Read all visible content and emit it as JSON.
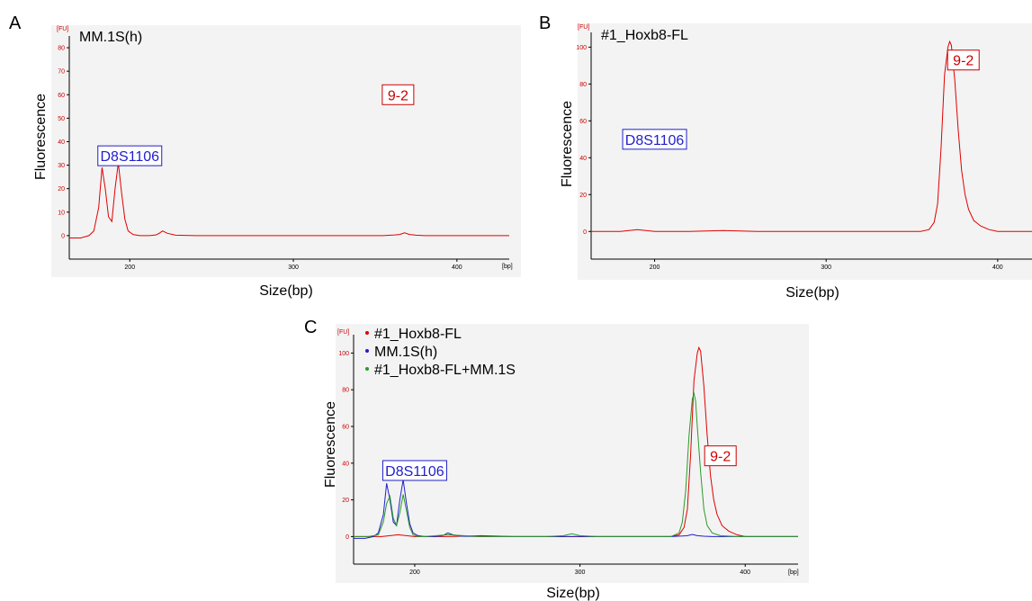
{
  "chart_data": [
    {
      "panel": "A",
      "type": "line",
      "title": "MM.1S(h)",
      "xlabel": "Size(bp)",
      "ylabel": "Fluorescence",
      "y_unit": "[FU]",
      "x_unit": "[bp]",
      "xlim": [
        163,
        432
      ],
      "ylim": [
        -10,
        85
      ],
      "xticks": [
        200,
        300,
        400
      ],
      "yticks": [
        0,
        10,
        20,
        30,
        40,
        50,
        60,
        70,
        80
      ],
      "grid": false,
      "annotations": [
        {
          "text": "D8S1106",
          "x": 200,
          "y": 34,
          "color": "#1f1fcc"
        },
        {
          "text": "9-2",
          "x": 364,
          "y": 60,
          "color": "#cc0000"
        }
      ],
      "series": [
        {
          "color": "#e00000",
          "x": [
            163,
            170,
            175,
            178,
            181,
            183,
            185,
            187,
            189,
            191,
            193,
            195,
            197,
            199,
            202,
            206,
            212,
            216,
            218,
            220,
            223,
            228,
            240,
            260,
            280,
            300,
            320,
            340,
            355,
            362,
            365,
            368,
            371,
            375,
            380,
            400,
            420,
            432
          ],
          "y": [
            -1,
            -1,
            0,
            2,
            12,
            29,
            20,
            8,
            6,
            20,
            31,
            18,
            7,
            2,
            0.5,
            0,
            0,
            0.3,
            1,
            2,
            1,
            0.2,
            0,
            0,
            0,
            0,
            0,
            0,
            0,
            0.3,
            0.5,
            1.2,
            0.5,
            0.2,
            0,
            0,
            0,
            0
          ]
        }
      ]
    },
    {
      "panel": "B",
      "type": "line",
      "title": "#1_Hoxb8-FL",
      "xlabel": "Size(bp)",
      "ylabel": "Fluorescence",
      "y_unit": "[FU]",
      "x_unit": "[bp]",
      "xlim": [
        163,
        420
      ],
      "ylim": [
        -15,
        108
      ],
      "xticks": [
        200,
        300,
        400
      ],
      "yticks": [
        0,
        20,
        40,
        60,
        80,
        100
      ],
      "grid": false,
      "annotations": [
        {
          "text": "D8S1106",
          "x": 200,
          "y": 50,
          "color": "#1f1fcc"
        },
        {
          "text": "9-2",
          "x": 380,
          "y": 93,
          "color": "#cc0000"
        }
      ],
      "series": [
        {
          "color": "#e00000",
          "x": [
            163,
            180,
            190,
            200,
            220,
            240,
            260,
            280,
            300,
            320,
            340,
            355,
            360,
            363,
            365,
            367,
            369,
            371,
            372,
            373,
            375,
            377,
            379,
            381,
            383,
            386,
            390,
            395,
            400,
            410,
            420
          ],
          "y": [
            0,
            0,
            1,
            0,
            0,
            0.5,
            0,
            0,
            0,
            0,
            0,
            0,
            1,
            5,
            15,
            45,
            85,
            100,
            103,
            101,
            82,
            55,
            33,
            20,
            12,
            6,
            3,
            1,
            0,
            0,
            0
          ]
        }
      ]
    },
    {
      "panel": "C",
      "type": "line",
      "xlabel": "Size(bp)",
      "ylabel": "Fluorescence",
      "y_unit": "[FU]",
      "x_unit": "[bp]",
      "xlim": [
        163,
        432
      ],
      "ylim": [
        -15,
        110
      ],
      "xticks": [
        200,
        300,
        400
      ],
      "yticks": [
        0,
        20,
        40,
        60,
        80,
        100
      ],
      "grid": false,
      "legend": "top-left",
      "annotations": [
        {
          "text": "D8S1106",
          "x": 200,
          "y": 36,
          "color": "#1f1fcc"
        },
        {
          "text": "9-2",
          "x": 385,
          "y": 44,
          "color": "#cc0000"
        }
      ],
      "series": [
        {
          "name": "#1_Hoxb8-FL",
          "color": "#e00000",
          "x": [
            163,
            180,
            190,
            200,
            220,
            240,
            260,
            280,
            300,
            320,
            340,
            355,
            360,
            363,
            365,
            367,
            369,
            371,
            372,
            373,
            375,
            377,
            379,
            381,
            383,
            386,
            390,
            395,
            400,
            410,
            432
          ],
          "y": [
            0,
            0,
            1,
            0,
            0,
            0.5,
            0,
            0,
            0,
            0,
            0,
            0,
            1,
            5,
            15,
            45,
            85,
            100,
            103,
            101,
            82,
            55,
            33,
            20,
            12,
            6,
            3,
            1,
            0,
            0,
            0
          ]
        },
        {
          "name": "MM.1S(h)",
          "color": "#1f1fcc",
          "x": [
            163,
            170,
            175,
            178,
            181,
            183,
            185,
            187,
            189,
            191,
            193,
            195,
            197,
            199,
            202,
            206,
            212,
            216,
            218,
            220,
            223,
            228,
            240,
            260,
            280,
            300,
            320,
            340,
            355,
            362,
            365,
            368,
            371,
            375,
            380,
            400,
            420,
            432
          ],
          "y": [
            -1,
            -1,
            0,
            2,
            12,
            29,
            20,
            8,
            6,
            20,
            31,
            18,
            7,
            2,
            0.5,
            0,
            0,
            0.3,
            1,
            2,
            1,
            0.2,
            0,
            0,
            0,
            0,
            0,
            0,
            0,
            0.3,
            0.5,
            1.2,
            0.5,
            0.2,
            0,
            0,
            0,
            0
          ]
        },
        {
          "name": "#1_Hoxb8-FL+MM.1S",
          "color": "#2a9a2a",
          "x": [
            163,
            172,
            178,
            181,
            183,
            185,
            187,
            189,
            191,
            193,
            195,
            197,
            199,
            202,
            206,
            220,
            240,
            280,
            290,
            295,
            300,
            310,
            340,
            355,
            360,
            362,
            364,
            366,
            368,
            369,
            370,
            371,
            373,
            375,
            377,
            380,
            385,
            395,
            432
          ],
          "y": [
            0,
            0,
            1,
            8,
            18,
            22,
            10,
            6,
            13,
            23,
            14,
            5,
            1,
            0,
            0,
            1,
            0,
            0,
            0.5,
            1.5,
            0.5,
            0,
            0,
            0,
            2,
            8,
            25,
            55,
            75,
            78,
            74,
            60,
            35,
            15,
            6,
            2,
            0.5,
            0,
            0
          ]
        }
      ]
    }
  ]
}
